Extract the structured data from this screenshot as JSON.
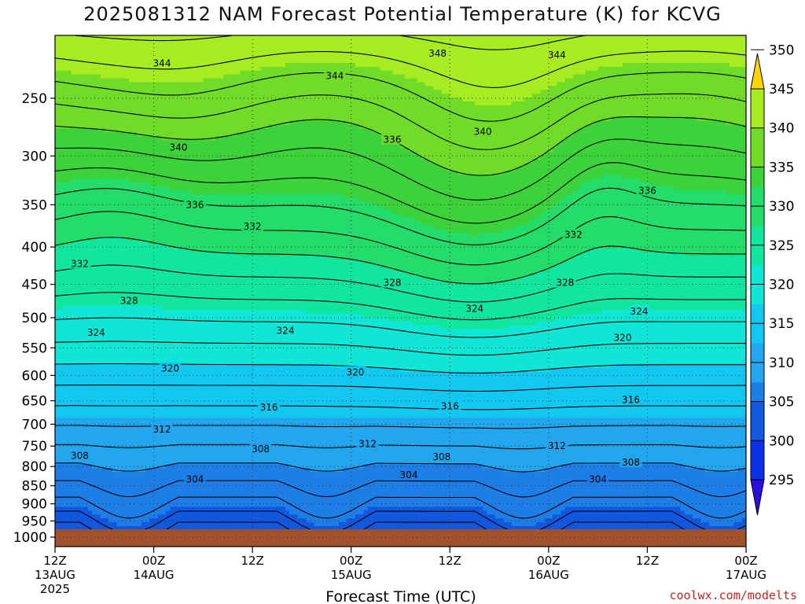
{
  "chart_data": {
    "type": "heatmap",
    "title": "2025081312 NAM Forecast Potential Temperature (K) for KCVG",
    "xlabel": "Forecast Time (UTC)",
    "ylabel": "",
    "credit": "coolwx.com/modelts",
    "y_axis": {
      "scale": "log-pressure",
      "ticks": [
        250,
        300,
        350,
        400,
        450,
        500,
        550,
        600,
        650,
        700,
        750,
        800,
        850,
        900,
        950,
        1000
      ],
      "range": [
        1000,
        200
      ]
    },
    "x_axis": {
      "ticks": [
        {
          "top": "12Z",
          "day": "13AUG",
          "year": "2025"
        },
        {
          "top": "00Z",
          "day": "14AUG",
          "year": ""
        },
        {
          "top": "12Z",
          "day": "",
          "year": ""
        },
        {
          "top": "00Z",
          "day": "15AUG",
          "year": ""
        },
        {
          "top": "12Z",
          "day": "",
          "year": ""
        },
        {
          "top": "00Z",
          "day": "16AUG",
          "year": ""
        },
        {
          "top": "12Z",
          "day": "",
          "year": ""
        },
        {
          "top": "00Z",
          "day": "17AUG",
          "year": ""
        }
      ],
      "range_hours": [
        0,
        84
      ]
    },
    "colorbar": {
      "levels": [
        295,
        300,
        305,
        310,
        315,
        320,
        325,
        330,
        335,
        340,
        345,
        350
      ],
      "colors": [
        "#2a0fe0",
        "#0a30e8",
        "#1058e0",
        "#1c7ee6",
        "#22a6ee",
        "#10c8f0",
        "#10e6d6",
        "#10e6a0",
        "#24dc6a",
        "#3cd23a",
        "#70dc28",
        "#a6ec20",
        "#ffee00",
        "#ffd400"
      ]
    },
    "contour_labels": [
      {
        "text": "344",
        "t": 13.0,
        "p": 224
      },
      {
        "text": "344",
        "t": 34.0,
        "p": 233
      },
      {
        "text": "348",
        "t": 46.5,
        "p": 217
      },
      {
        "text": "344",
        "t": 61.0,
        "p": 218
      },
      {
        "text": "340",
        "t": 15.0,
        "p": 292
      },
      {
        "text": "336",
        "t": 41.0,
        "p": 285
      },
      {
        "text": "340",
        "t": 52.0,
        "p": 278
      },
      {
        "text": "336",
        "t": 17.0,
        "p": 350
      },
      {
        "text": "336",
        "t": 72.0,
        "p": 335
      },
      {
        "text": "332",
        "t": 24.0,
        "p": 375
      },
      {
        "text": "332",
        "t": 63.0,
        "p": 385
      },
      {
        "text": "332",
        "t": 3.0,
        "p": 422
      },
      {
        "text": "328",
        "t": 41.0,
        "p": 448
      },
      {
        "text": "328",
        "t": 62.0,
        "p": 448
      },
      {
        "text": "328",
        "t": 9.0,
        "p": 474
      },
      {
        "text": "324",
        "t": 51.0,
        "p": 486
      },
      {
        "text": "324",
        "t": 71.0,
        "p": 490
      },
      {
        "text": "324",
        "t": 5.0,
        "p": 524
      },
      {
        "text": "324",
        "t": 28.0,
        "p": 521
      },
      {
        "text": "320",
        "t": 69.0,
        "p": 533
      },
      {
        "text": "320",
        "t": 14.0,
        "p": 587
      },
      {
        "text": "320",
        "t": 36.5,
        "p": 594
      },
      {
        "text": "316",
        "t": 26.0,
        "p": 664
      },
      {
        "text": "316",
        "t": 48.0,
        "p": 661
      },
      {
        "text": "316",
        "t": 70.0,
        "p": 648
      },
      {
        "text": "312",
        "t": 13.0,
        "p": 712
      },
      {
        "text": "312",
        "t": 38.0,
        "p": 745
      },
      {
        "text": "312",
        "t": 61.0,
        "p": 750
      },
      {
        "text": "308",
        "t": 3.0,
        "p": 773
      },
      {
        "text": "308",
        "t": 25.0,
        "p": 757
      },
      {
        "text": "308",
        "t": 47.0,
        "p": 776
      },
      {
        "text": "308",
        "t": 70.0,
        "p": 790
      },
      {
        "text": "304",
        "t": 17.0,
        "p": 833
      },
      {
        "text": "304",
        "t": 43.0,
        "p": 822
      },
      {
        "text": "304",
        "t": 66.0,
        "p": 833
      }
    ]
  }
}
